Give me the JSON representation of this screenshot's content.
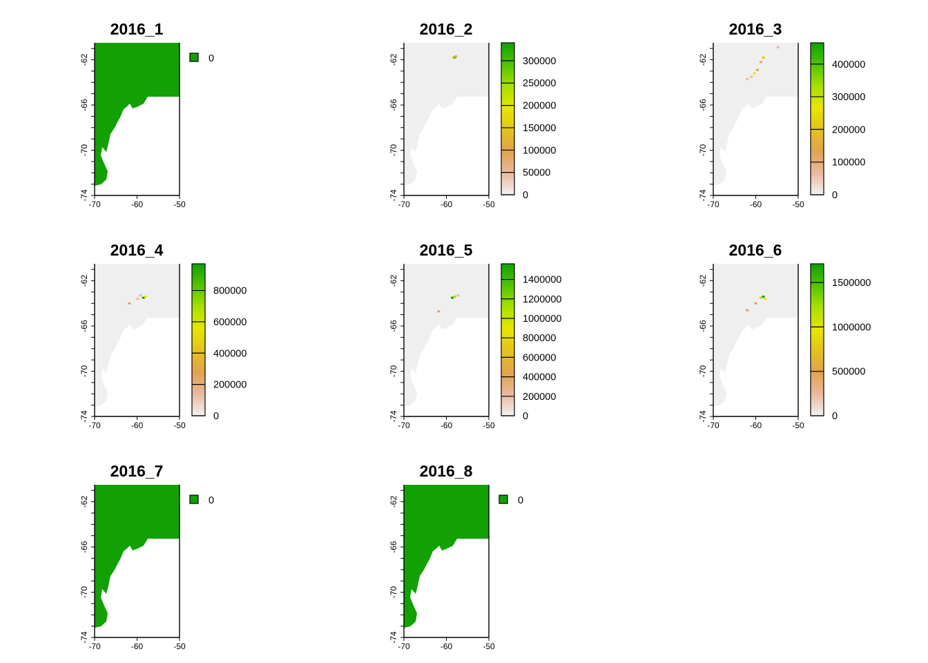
{
  "figure": {
    "x_ticks": [
      "-70",
      "-60",
      "-50"
    ],
    "y_ticks": [
      "-62",
      "-66",
      "-70",
      "-74"
    ],
    "land_color": "#efefef",
    "ramp_colors": [
      "#f2f2f2",
      "#eab8a0",
      "#e2a24f",
      "#e3c31c",
      "#e6e600",
      "#a9e000",
      "#52c400",
      "#12a003"
    ]
  },
  "panels": [
    {
      "title": "2016_1",
      "legend": {
        "type": "single",
        "label": "0",
        "color": "#12a003"
      },
      "fill": "#12a003",
      "hotspots": []
    },
    {
      "title": "2016_2",
      "legend": {
        "type": "continuous",
        "max": 340000,
        "labels": [
          "0",
          "50000",
          "100000",
          "150000",
          "200000",
          "250000",
          "300000"
        ],
        "values": [
          0,
          50000,
          100000,
          150000,
          200000,
          250000,
          300000
        ]
      },
      "fill": "#efefef",
      "hotspots": [
        {
          "lon": -58.3,
          "lat": -61.8,
          "color": "#e3c31c"
        },
        {
          "lon": -58.0,
          "lat": -61.8,
          "color": "#52c400"
        },
        {
          "lon": -57.8,
          "lat": -61.7,
          "color": "#e2a24f"
        }
      ]
    },
    {
      "title": "2016_3",
      "legend": {
        "type": "continuous",
        "max": 465000,
        "labels": [
          "0",
          "100000",
          "200000",
          "300000",
          "400000"
        ],
        "values": [
          0,
          100000,
          200000,
          300000,
          400000
        ]
      },
      "fill": "#efefef",
      "hotspots": [
        {
          "lon": -54.8,
          "lat": -60.9,
          "color": "#eab8a0"
        },
        {
          "lon": -58.2,
          "lat": -61.8,
          "color": "#e3c31c"
        },
        {
          "lon": -58.8,
          "lat": -62.2,
          "color": "#e2a24f"
        },
        {
          "lon": -59.6,
          "lat": -62.9,
          "color": "#e2a24f"
        },
        {
          "lon": -60.3,
          "lat": -63.2,
          "color": "#e6e600"
        },
        {
          "lon": -61.0,
          "lat": -63.5,
          "color": "#eab8a0"
        },
        {
          "lon": -62.0,
          "lat": -63.7,
          "color": "#eab8a0"
        }
      ]
    },
    {
      "title": "2016_4",
      "legend": {
        "type": "continuous",
        "max": 970000,
        "labels": [
          "0",
          "200000",
          "400000",
          "600000",
          "800000"
        ],
        "values": [
          0,
          200000,
          400000,
          600000,
          800000
        ]
      },
      "fill": "#efefef",
      "hotspots": [
        {
          "lon": -59.2,
          "lat": -63.3,
          "color": "#eab8a0"
        },
        {
          "lon": -58.5,
          "lat": -63.5,
          "color": "#12a003"
        },
        {
          "lon": -58.0,
          "lat": -63.4,
          "color": "#e6e600"
        },
        {
          "lon": -61.8,
          "lat": -64.0,
          "color": "#e2a24f"
        },
        {
          "lon": -59.8,
          "lat": -63.6,
          "color": "#eab8a0"
        }
      ]
    },
    {
      "title": "2016_5",
      "legend": {
        "type": "continuous",
        "max": 1560000,
        "labels": [
          "0",
          "200000",
          "400000",
          "600000",
          "800000",
          "1000000",
          "1200000",
          "1400000"
        ],
        "values": [
          0,
          200000,
          400000,
          600000,
          800000,
          1000000,
          1200000,
          1400000
        ]
      },
      "fill": "#efefef",
      "hotspots": [
        {
          "lon": -58.6,
          "lat": -63.5,
          "color": "#12a003"
        },
        {
          "lon": -58.0,
          "lat": -63.4,
          "color": "#a9e000"
        },
        {
          "lon": -57.2,
          "lat": -63.3,
          "color": "#eab8a0"
        },
        {
          "lon": -61.8,
          "lat": -64.7,
          "color": "#e2a24f"
        }
      ]
    },
    {
      "title": "2016_6",
      "legend": {
        "type": "continuous",
        "max": 1710000,
        "labels": [
          "0",
          "500000",
          "1000000",
          "1500000"
        ],
        "values": [
          0,
          500000,
          1000000,
          1500000
        ]
      },
      "fill": "#efefef",
      "hotspots": [
        {
          "lon": -58.8,
          "lat": -63.5,
          "color": "#e3c31c"
        },
        {
          "lon": -58.2,
          "lat": -63.4,
          "color": "#12a003"
        },
        {
          "lon": -57.8,
          "lat": -63.6,
          "color": "#e6e600"
        },
        {
          "lon": -60.0,
          "lat": -64.0,
          "color": "#e2a24f"
        },
        {
          "lon": -62.0,
          "lat": -64.6,
          "color": "#e2a24f"
        }
      ]
    },
    {
      "title": "2016_7",
      "legend": {
        "type": "single",
        "label": "0",
        "color": "#12a003"
      },
      "fill": "#12a003",
      "hotspots": []
    },
    {
      "title": "2016_8",
      "legend": {
        "type": "single",
        "label": "0",
        "color": "#12a003"
      },
      "fill": "#12a003",
      "hotspots": []
    }
  ]
}
